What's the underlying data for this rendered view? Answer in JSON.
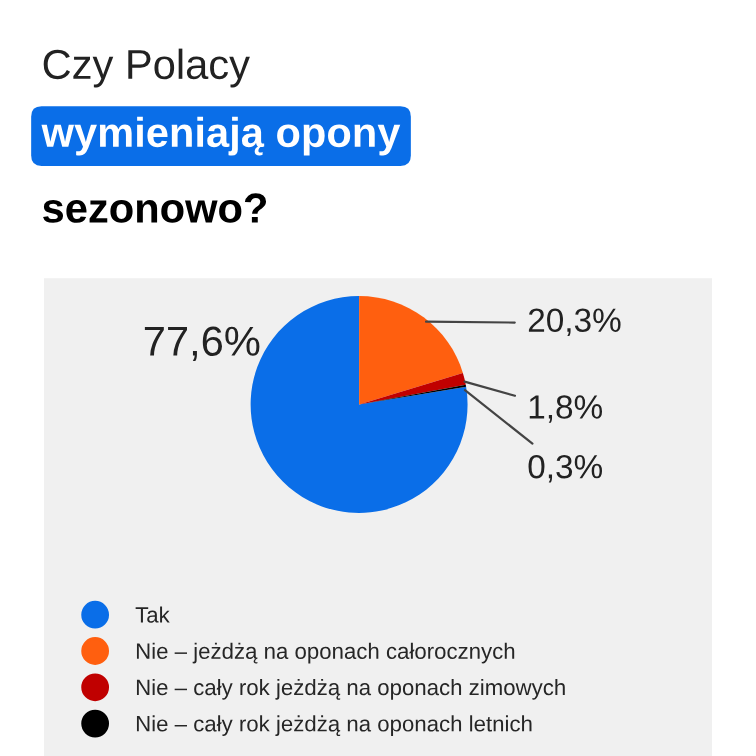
{
  "chart_data": {
    "type": "pie",
    "title": "Czy Polacy\nwymieniają opony\nsezonowo?",
    "categories": [
      "Tak",
      "Nie – jeżdżą na oponach całorocznych",
      "Nie – cały rok jeżdżą na oponach zimowych",
      "Nie – cały rok jeżdżą na oponach letnich"
    ],
    "values": [
      77.6,
      20.3,
      1.8,
      0.3
    ],
    "value_labels": [
      "77,6%",
      "20,3%",
      "1,8%",
      "0,3%"
    ],
    "colors": [
      "#0a6ee8",
      "#ff5f0f",
      "#c00000",
      "#000000"
    ],
    "legend": "bottom"
  }
}
